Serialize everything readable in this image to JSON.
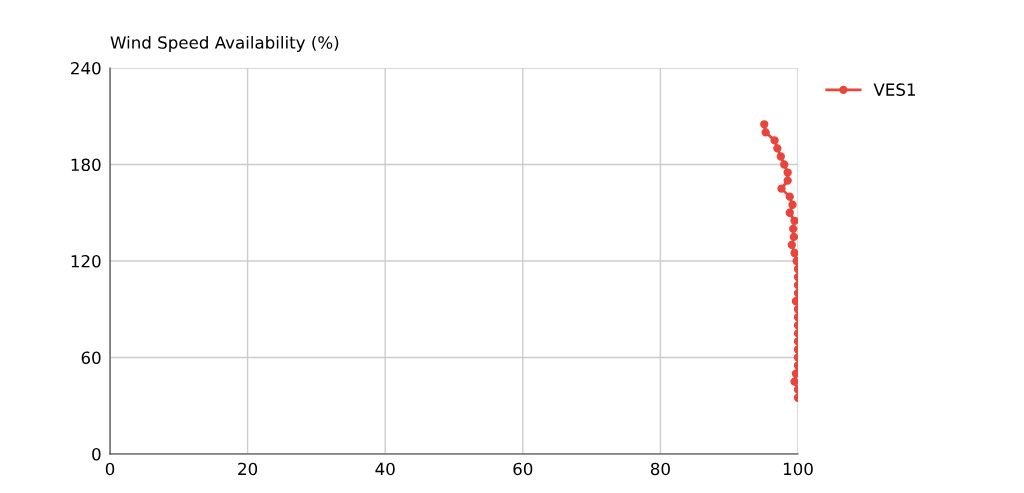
{
  "chart_data": {
    "type": "line",
    "title": "Wind Speed Availability (%)",
    "x": [
      95.1,
      95.3,
      96.6,
      97.0,
      97.5,
      98.0,
      98.5,
      98.5,
      97.6,
      98.8,
      99.2,
      98.8,
      99.5,
      99.3,
      99.4,
      99.1,
      99.5,
      99.8,
      100,
      100,
      100,
      100,
      99.7,
      100,
      100,
      100,
      100,
      100,
      100,
      100,
      100,
      99.7,
      99.5,
      100,
      100
    ],
    "series": [
      {
        "name": "VES1",
        "color": "#e8453c",
        "values": [
          205,
          200,
          195,
          190,
          185,
          180,
          175,
          170,
          165,
          160,
          155,
          150,
          145,
          140,
          135,
          130,
          125,
          120,
          115,
          110,
          105,
          100,
          95,
          90,
          85,
          80,
          75,
          70,
          65,
          60,
          55,
          50,
          45,
          40,
          35
        ]
      }
    ],
    "xlim": [
      0,
      100
    ],
    "xticks": [
      0,
      20,
      40,
      60,
      80,
      100
    ],
    "ylim": [
      0,
      240
    ],
    "yticks": [
      0,
      60,
      120,
      180,
      240
    ],
    "grid": true,
    "legend": "top right",
    "marker": "circle",
    "line_style": "solid"
  }
}
